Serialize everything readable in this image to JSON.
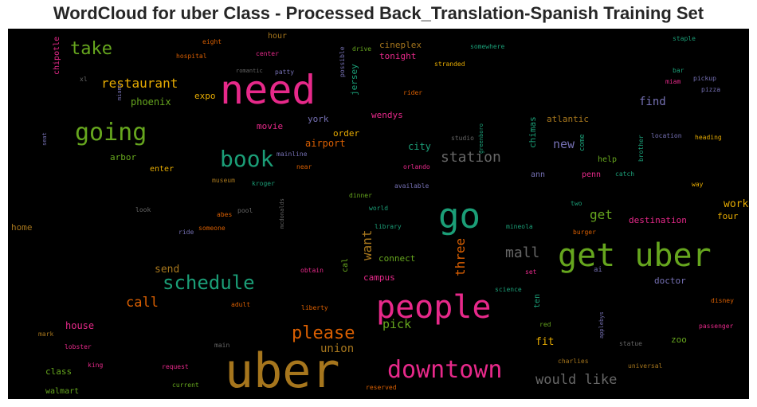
{
  "chart_data": {
    "type": "wordcloud",
    "title": "WordCloud for uber Class - Processed Back_Translation-Spanish Training Set",
    "background": "#000000",
    "palette": [
      "#1b9e77",
      "#d95f02",
      "#7570b3",
      "#e7298a",
      "#66a61e",
      "#e6ab02",
      "#a6761d",
      "#666666"
    ],
    "words": [
      {
        "text": "uber",
        "size": 60,
        "color": "#a6761d"
      },
      {
        "text": "need",
        "size": 50,
        "color": "#e7298a"
      },
      {
        "text": "get uber",
        "size": 40,
        "color": "#66a61e"
      },
      {
        "text": "go",
        "size": 44,
        "color": "#1b9e77"
      },
      {
        "text": "people",
        "size": 40,
        "color": "#e7298a"
      },
      {
        "text": "downtown",
        "size": 30,
        "color": "#e7298a"
      },
      {
        "text": "going",
        "size": 30,
        "color": "#66a61e"
      },
      {
        "text": "book",
        "size": 28,
        "color": "#1b9e77"
      },
      {
        "text": "schedule",
        "size": 24,
        "color": "#1b9e77"
      },
      {
        "text": "please",
        "size": 22,
        "color": "#d95f02"
      },
      {
        "text": "take",
        "size": 22,
        "color": "#66a61e"
      },
      {
        "text": "station",
        "size": 18,
        "color": "#666666"
      },
      {
        "text": "mall",
        "size": 18,
        "color": "#666666"
      },
      {
        "text": "would like",
        "size": 17,
        "color": "#666666"
      },
      {
        "text": "restaurant",
        "size": 16,
        "color": "#e6ab02"
      },
      {
        "text": "call",
        "size": 17,
        "color": "#d95f02"
      },
      {
        "text": "want",
        "size": 16,
        "color": "#a6761d"
      },
      {
        "text": "three",
        "size": 16,
        "color": "#d95f02"
      },
      {
        "text": "get",
        "size": 16,
        "color": "#66a61e"
      },
      {
        "text": "new",
        "size": 15,
        "color": "#7570b3"
      },
      {
        "text": "pick",
        "size": 15,
        "color": "#66a61e"
      },
      {
        "text": "union",
        "size": 14,
        "color": "#a6761d"
      },
      {
        "text": "find",
        "size": 14,
        "color": "#7570b3"
      },
      {
        "text": "work",
        "size": 13,
        "color": "#e6ab02"
      },
      {
        "text": "fit",
        "size": 13,
        "color": "#e6ab02"
      },
      {
        "text": "send",
        "size": 13,
        "color": "#a6761d"
      },
      {
        "text": "house",
        "size": 12,
        "color": "#e7298a"
      },
      {
        "text": "phoenix",
        "size": 12,
        "color": "#66a61e"
      },
      {
        "text": "expo",
        "size": 11,
        "color": "#e6ab02"
      },
      {
        "text": "airport",
        "size": 12,
        "color": "#d95f02"
      },
      {
        "text": "city",
        "size": 12,
        "color": "#1b9e77"
      },
      {
        "text": "chimas",
        "size": 11,
        "color": "#1b9e77"
      },
      {
        "text": "atlantic",
        "size": 11,
        "color": "#a6761d"
      },
      {
        "text": "wendys",
        "size": 11,
        "color": "#e7298a"
      },
      {
        "text": "jersey",
        "size": 11,
        "color": "#1b9e77"
      },
      {
        "text": "york",
        "size": 11,
        "color": "#7570b3"
      },
      {
        "text": "movie",
        "size": 11,
        "color": "#e7298a"
      },
      {
        "text": "tonight",
        "size": 11,
        "color": "#e7298a"
      },
      {
        "text": "cineplex",
        "size": 11,
        "color": "#a6761d"
      },
      {
        "text": "hour",
        "size": 10,
        "color": "#a6761d"
      },
      {
        "text": "order",
        "size": 11,
        "color": "#e6ab02"
      },
      {
        "text": "arbor",
        "size": 11,
        "color": "#66a61e"
      },
      {
        "text": "enter",
        "size": 10,
        "color": "#e6ab02"
      },
      {
        "text": "help",
        "size": 10,
        "color": "#66a61e"
      },
      {
        "text": "come",
        "size": 9,
        "color": "#1b9e77"
      },
      {
        "text": "ann",
        "size": 10,
        "color": "#7570b3"
      },
      {
        "text": "penn",
        "size": 10,
        "color": "#e7298a"
      },
      {
        "text": "destination",
        "size": 11,
        "color": "#e7298a"
      },
      {
        "text": "four",
        "size": 11,
        "color": "#e6ab02"
      },
      {
        "text": "connect",
        "size": 11,
        "color": "#66a61e"
      },
      {
        "text": "campus",
        "size": 11,
        "color": "#e7298a"
      },
      {
        "text": "cal",
        "size": 10,
        "color": "#66a61e"
      },
      {
        "text": "ten",
        "size": 10,
        "color": "#1b9e77"
      },
      {
        "text": "doctor",
        "size": 11,
        "color": "#7570b3"
      },
      {
        "text": "zoo",
        "size": 11,
        "color": "#66a61e"
      },
      {
        "text": "class",
        "size": 11,
        "color": "#66a61e"
      },
      {
        "text": "walmart",
        "size": 10,
        "color": "#66a61e"
      },
      {
        "text": "home",
        "size": 11,
        "color": "#a6761d"
      },
      {
        "text": "chipotle",
        "size": 10,
        "color": "#e7298a"
      },
      {
        "text": "eight",
        "size": 8,
        "color": "#d95f02"
      },
      {
        "text": "hospital",
        "size": 8,
        "color": "#d95f02"
      },
      {
        "text": "center",
        "size": 8,
        "color": "#e7298a"
      },
      {
        "text": "drive",
        "size": 8,
        "color": "#66a61e"
      },
      {
        "text": "somewhere",
        "size": 8,
        "color": "#1b9e77"
      },
      {
        "text": "stranded",
        "size": 8,
        "color": "#e6ab02"
      },
      {
        "text": "staple",
        "size": 8,
        "color": "#1b9e77"
      },
      {
        "text": "bar",
        "size": 8,
        "color": "#1b9e77"
      },
      {
        "text": "miam",
        "size": 8,
        "color": "#e7298a"
      },
      {
        "text": "pickup",
        "size": 8,
        "color": "#7570b3"
      },
      {
        "text": "pizza",
        "size": 8,
        "color": "#7570b3"
      },
      {
        "text": "rider",
        "size": 8,
        "color": "#d95f02"
      },
      {
        "text": "patty",
        "size": 8,
        "color": "#7570b3"
      },
      {
        "text": "possible",
        "size": 8,
        "color": "#7570b3"
      },
      {
        "text": "xl",
        "size": 8,
        "color": "#666666"
      },
      {
        "text": "miami",
        "size": 7,
        "color": "#7570b3"
      },
      {
        "text": "seat",
        "size": 7,
        "color": "#7570b3"
      },
      {
        "text": "greenboro",
        "size": 7,
        "color": "#1b9e77"
      },
      {
        "text": "studio",
        "size": 8,
        "color": "#666666"
      },
      {
        "text": "mainline",
        "size": 8,
        "color": "#7570b3"
      },
      {
        "text": "near",
        "size": 8,
        "color": "#d95f02"
      },
      {
        "text": "orlando",
        "size": 8,
        "color": "#e7298a"
      },
      {
        "text": "location",
        "size": 8,
        "color": "#7570b3"
      },
      {
        "text": "heading",
        "size": 8,
        "color": "#e6ab02"
      },
      {
        "text": "brother",
        "size": 8,
        "color": "#1b9e77"
      },
      {
        "text": "catch",
        "size": 8,
        "color": "#1b9e77"
      },
      {
        "text": "way",
        "size": 8,
        "color": "#e6ab02"
      },
      {
        "text": "museum",
        "size": 8,
        "color": "#a6761d"
      },
      {
        "text": "kroger",
        "size": 8,
        "color": "#1b9e77"
      },
      {
        "text": "available",
        "size": 8,
        "color": "#7570b3"
      },
      {
        "text": "mcdonalds",
        "size": 7,
        "color": "#666666"
      },
      {
        "text": "dinner",
        "size": 8,
        "color": "#66a61e"
      },
      {
        "text": "world",
        "size": 8,
        "color": "#1b9e77"
      },
      {
        "text": "two",
        "size": 8,
        "color": "#1b9e77"
      },
      {
        "text": "look",
        "size": 8,
        "color": "#666666"
      },
      {
        "text": "pool",
        "size": 8,
        "color": "#666666"
      },
      {
        "text": "abes",
        "size": 8,
        "color": "#d95f02"
      },
      {
        "text": "ride",
        "size": 8,
        "color": "#7570b3"
      },
      {
        "text": "someone",
        "size": 8,
        "color": "#d95f02"
      },
      {
        "text": "library",
        "size": 8,
        "color": "#1b9e77"
      },
      {
        "text": "mineola",
        "size": 8,
        "color": "#1b9e77"
      },
      {
        "text": "burger",
        "size": 8,
        "color": "#d95f02"
      },
      {
        "text": "obtain",
        "size": 8,
        "color": "#e7298a"
      },
      {
        "text": "set",
        "size": 8,
        "color": "#e7298a"
      },
      {
        "text": "ai",
        "size": 9,
        "color": "#7570b3"
      },
      {
        "text": "science",
        "size": 8,
        "color": "#1b9e77"
      },
      {
        "text": "adult",
        "size": 8,
        "color": "#d95f02"
      },
      {
        "text": "liberty",
        "size": 8,
        "color": "#d95f02"
      },
      {
        "text": "applebys",
        "size": 7,
        "color": "#7570b3"
      },
      {
        "text": "disney",
        "size": 8,
        "color": "#d95f02"
      },
      {
        "text": "passenger",
        "size": 8,
        "color": "#e7298a"
      },
      {
        "text": "mark",
        "size": 8,
        "color": "#a6761d"
      },
      {
        "text": "lobster",
        "size": 8,
        "color": "#e7298a"
      },
      {
        "text": "main",
        "size": 8,
        "color": "#666666"
      },
      {
        "text": "red",
        "size": 8,
        "color": "#66a61e"
      },
      {
        "text": "statue",
        "size": 8,
        "color": "#666666"
      },
      {
        "text": "king",
        "size": 8,
        "color": "#e7298a"
      },
      {
        "text": "request",
        "size": 8,
        "color": "#e7298a"
      },
      {
        "text": "charlies",
        "size": 8,
        "color": "#a6761d"
      },
      {
        "text": "universal",
        "size": 8,
        "color": "#a6761d"
      },
      {
        "text": "current",
        "size": 8,
        "color": "#66a61e"
      },
      {
        "text": "reserved",
        "size": 8,
        "color": "#d95f02"
      },
      {
        "text": "romantic",
        "size": 7,
        "color": "#666666"
      }
    ]
  }
}
